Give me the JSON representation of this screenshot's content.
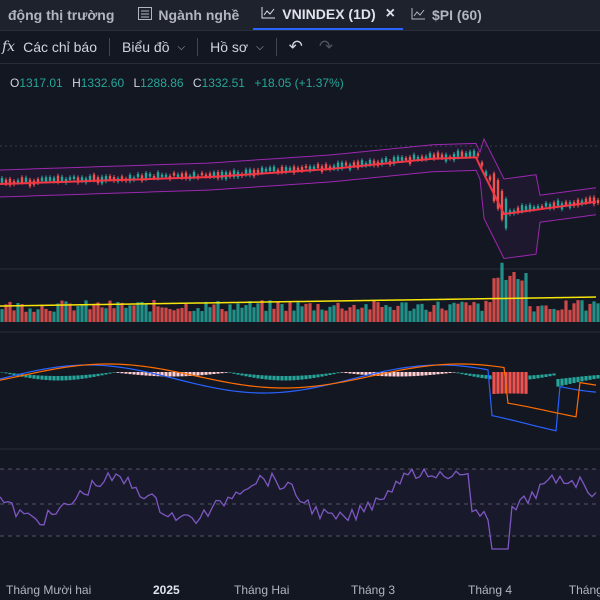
{
  "tabs": [
    {
      "label": "động thị trường",
      "icon": "none"
    },
    {
      "label": "Ngành nghề",
      "icon": "list-icon"
    },
    {
      "label": "VNINDEX (1D)",
      "icon": "chart-icon",
      "close": "×"
    },
    {
      "label": "$PI (60)",
      "icon": "chart-icon"
    }
  ],
  "toolbar": {
    "fx_icon": "fx",
    "indicators": "Các chỉ báo",
    "chart": "Biểu đồ",
    "profile": "Hồ sơ",
    "undo": "↶",
    "redo": "↷"
  },
  "legend": {
    "o_key": "O",
    "o_val": "1317.01",
    "h_key": "H",
    "h_val": "1332.60",
    "l_key": "L",
    "l_val": "1288.86",
    "c_key": "C",
    "c_val": "1332.51",
    "change": "+18.05 (+1.37%)"
  },
  "x_axis": [
    {
      "label": "Tháng Mười hai",
      "pos": 0.01
    },
    {
      "label": "2025",
      "pos": 0.255
    },
    {
      "label": "Tháng Hai",
      "pos": 0.39
    },
    {
      "label": "Tháng 3",
      "pos": 0.585
    },
    {
      "label": "Tháng 4",
      "pos": 0.78
    },
    {
      "label": "Tháng",
      "pos": 0.948
    }
  ],
  "colors": {
    "up": "#26a69a",
    "down": "#ef5350",
    "ma": "#f23645",
    "band": "#9c27b0",
    "vol_ma": "#f5e50a",
    "macd": "#2962ff",
    "signal": "#ff6d00",
    "rsi": "#7e57c2"
  }
}
